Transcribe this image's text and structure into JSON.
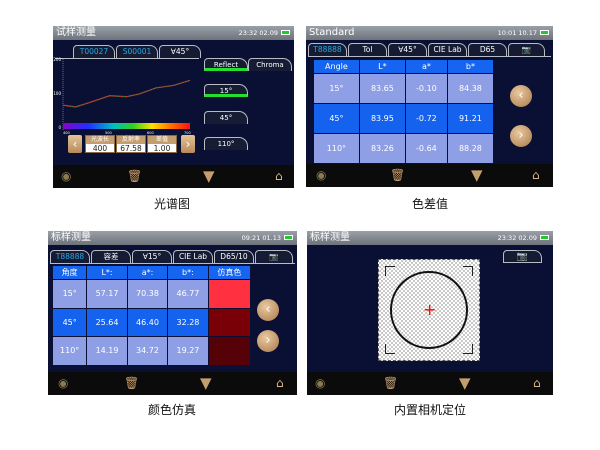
{
  "spectrum_screen": {
    "title": "试样测量",
    "time": "23:32 02.09",
    "tabs": [
      "T00027",
      "S00001",
      "∀45°"
    ],
    "mode_tabs": [
      "Reflect",
      "Chroma"
    ],
    "angle_buttons": [
      "15°",
      "45°",
      "110°"
    ],
    "y_ticks": [
      "200",
      "100",
      "0"
    ],
    "x_ticks": [
      "400",
      "500",
      "600",
      "700"
    ],
    "curve": {
      "wavelength_nm": [
        400,
        430,
        470,
        510,
        550,
        580,
        620,
        660,
        700
      ],
      "reflectance": [
        67,
        62,
        78,
        95,
        92,
        100,
        118,
        125,
        140
      ]
    },
    "fields": [
      {
        "label": "光波长",
        "value": "400"
      },
      {
        "label": "反射率",
        "value": "67.58"
      },
      {
        "label": "差值",
        "value": "1.00"
      }
    ],
    "caption": "光谱图"
  },
  "diff_screen": {
    "title": "Standard",
    "time": "10:01 10.17",
    "tabs": [
      "T88888",
      "Tol",
      "∀45°",
      "CIE Lab",
      "D65"
    ],
    "headers": [
      "Angle",
      "L*",
      "a*",
      "b*"
    ],
    "rows": [
      [
        "15°",
        "83.65",
        "-0.10",
        "84.38"
      ],
      [
        "45°",
        "83.95",
        "-0.72",
        "91.21"
      ],
      [
        "110°",
        "83.26",
        "-0.64",
        "88.28"
      ]
    ],
    "caption": "色差值"
  },
  "sim_screen": {
    "title": "标样测量",
    "time": "09:21 01.13",
    "tabs": [
      "T88888",
      "容差",
      "∀15°",
      "CIE Lab",
      "D65/10"
    ],
    "headers": [
      "角度",
      "L*:",
      "a*:",
      "b*:",
      "仿真色"
    ],
    "rows": [
      [
        "15°",
        "57.17",
        "70.38",
        "46.77"
      ],
      [
        "45°",
        "25.64",
        "46.40",
        "32.28"
      ],
      [
        "110°",
        "14.19",
        "34.72",
        "19.27"
      ]
    ],
    "swatch_colors": [
      "#ff3040",
      "#7a0008",
      "#560008"
    ],
    "caption": "颜色仿真"
  },
  "camera_screen": {
    "title": "标样测量",
    "time": "23:32 02.09",
    "caption": "内置相机定位"
  },
  "colors": {
    "accent_blue": "#1565f0",
    "light_row": "#8e9fe6",
    "green": "#22e02e",
    "tan": "#c59e6e"
  }
}
